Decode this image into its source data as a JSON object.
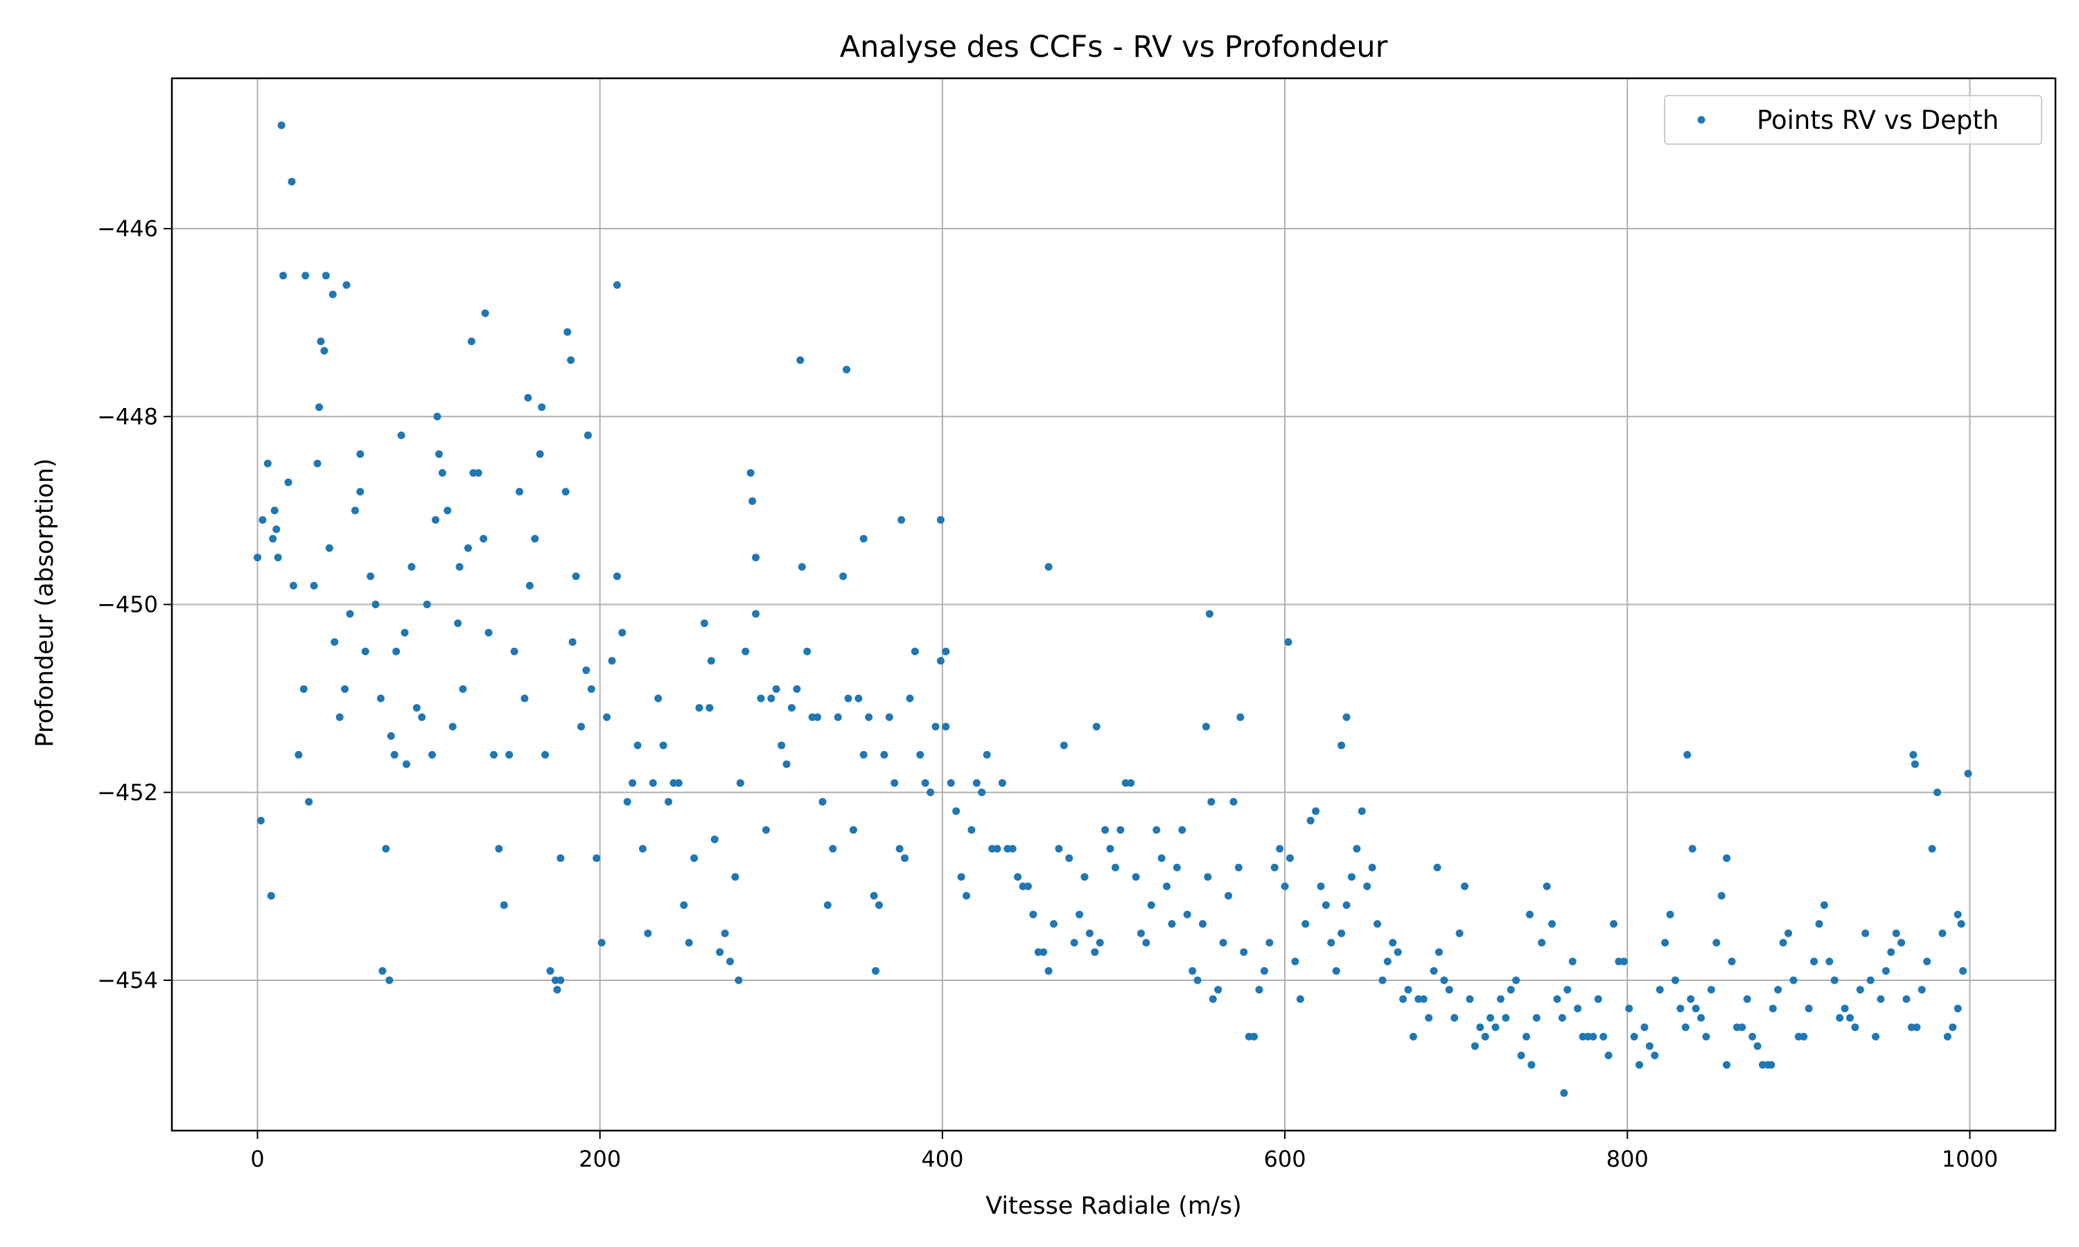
{
  "chart_data": {
    "type": "scatter",
    "title": "Analyse des CCFs - RV vs Profondeur",
    "xlabel": "Vitesse Radiale (m/s)",
    "ylabel": "Profondeur (absorption)",
    "xlim": [
      -50,
      1050
    ],
    "ylim": [
      -455.6,
      -444.4
    ],
    "x_ticks": [
      0,
      200,
      400,
      600,
      800,
      1000
    ],
    "x_tick_labels": [
      "0",
      "200",
      "400",
      "600",
      "800",
      "1000"
    ],
    "y_ticks": [
      -446,
      -448,
      -450,
      -452,
      -454
    ],
    "y_tick_labels": [
      "−446",
      "−448",
      "−450",
      "−452",
      "−454"
    ],
    "grid": true,
    "legend_position": "top-right",
    "colors": {
      "series": "#1f77b4",
      "grid": "#b0b0b0",
      "axes": "#000000"
    },
    "series": [
      {
        "name": "Points RV vs Depth",
        "marker": "dot",
        "x": [
          0,
          3,
          6,
          9,
          12,
          15,
          18,
          21,
          24,
          27,
          30,
          33,
          36,
          39,
          42,
          45,
          48,
          51,
          54,
          57,
          60,
          63,
          66,
          69,
          72,
          75,
          78,
          81,
          84,
          87,
          90,
          93,
          96,
          99,
          102,
          105,
          108,
          111,
          114,
          117,
          120,
          123,
          126,
          129,
          132,
          135,
          138,
          141,
          144,
          147,
          150,
          153,
          156,
          159,
          162,
          165,
          168,
          171,
          174,
          177,
          180,
          183,
          186,
          189,
          192,
          195,
          198,
          201,
          204,
          207,
          210,
          213,
          216,
          219,
          222,
          225,
          228,
          231,
          234,
          237,
          240,
          243,
          246,
          249,
          252,
          255,
          258,
          261,
          264,
          267,
          270,
          273,
          276,
          279,
          282,
          285,
          288,
          291,
          294,
          297,
          300,
          303,
          306,
          309,
          312,
          315,
          318,
          321,
          324,
          327,
          330,
          333,
          336,
          339,
          342,
          345,
          348,
          351,
          354,
          357,
          360,
          363,
          366,
          369,
          372,
          375,
          378,
          381,
          384,
          387,
          390,
          393,
          396,
          399,
          402,
          405,
          408,
          411,
          414,
          417,
          420,
          423,
          426,
          429,
          432,
          435,
          438,
          441,
          444,
          447,
          450,
          453,
          456,
          459,
          462,
          465,
          468,
          471,
          474,
          477,
          480,
          483,
          486,
          489,
          492,
          495,
          498,
          501,
          504,
          507,
          510,
          513,
          516,
          519,
          522,
          525,
          528,
          531,
          534,
          537,
          540,
          543,
          546,
          549,
          552,
          555,
          558,
          561,
          564,
          567,
          570,
          573,
          576,
          579,
          582,
          585,
          588,
          591,
          594,
          597,
          600,
          603,
          606,
          609,
          612,
          615,
          618,
          621,
          624,
          627,
          630,
          633,
          636,
          639,
          642,
          645,
          648,
          651,
          654,
          657,
          660,
          663,
          666,
          669,
          672,
          675,
          678,
          681,
          684,
          687,
          690,
          693,
          696,
          699,
          702,
          705,
          708,
          711,
          714,
          717,
          720,
          723,
          726,
          729,
          732,
          735,
          738,
          741,
          744,
          747,
          750,
          753,
          756,
          759,
          762,
          765,
          768,
          771,
          774,
          777,
          780,
          783,
          786,
          789,
          792,
          795,
          798,
          801,
          804,
          807,
          810,
          813,
          816,
          819,
          822,
          825,
          828,
          831,
          834,
          837,
          840,
          843,
          846,
          849,
          852,
          855,
          858,
          861,
          864,
          867,
          870,
          873,
          876,
          879,
          882,
          885,
          888,
          891,
          894,
          897,
          900,
          903,
          906,
          909,
          912,
          915,
          918,
          921,
          924,
          927,
          930,
          933,
          936,
          939,
          942,
          945,
          948,
          951,
          954,
          957,
          960,
          963,
          966,
          969,
          972,
          975,
          978,
          981,
          984,
          987,
          990,
          993,
          996,
          999,
          2,
          8,
          10,
          11,
          14,
          20,
          28,
          35,
          37,
          40,
          44,
          52,
          60,
          80,
          86,
          104,
          106,
          118,
          125,
          133,
          158,
          166,
          181,
          184,
          193,
          210,
          265,
          289,
          291,
          317,
          344,
          354,
          376,
          399,
          402,
          462,
          490,
          554,
          556,
          557,
          574,
          602,
          633,
          636,
          689,
          743,
          835,
          838,
          967,
          968,
          993,
          995,
          73,
          77,
          175,
          177,
          281,
          361,
          763,
          858,
          884
        ],
        "y": [
          -449.5,
          -449.1,
          -448.5,
          -449.3,
          -449.5,
          -446.5,
          -448.7,
          -449.8,
          -451.6,
          -450.9,
          -452.1,
          -449.8,
          -447.9,
          -447.3,
          -449.4,
          -450.4,
          -451.2,
          -450.9,
          -450.1,
          -449.0,
          -448.8,
          -450.5,
          -449.7,
          -450.0,
          -451.0,
          -452.6,
          -451.4,
          -450.5,
          -448.2,
          -451.7,
          -449.6,
          -451.1,
          -451.2,
          -450.0,
          -451.6,
          -448.0,
          -448.6,
          -449.0,
          -451.3,
          -450.2,
          -450.9,
          -449.4,
          -448.6,
          -448.6,
          -449.3,
          -450.3,
          -451.6,
          -452.6,
          -453.2,
          -451.6,
          -450.5,
          -448.8,
          -451.0,
          -449.8,
          -449.3,
          -448.4,
          -451.6,
          -453.9,
          -454.0,
          -452.7,
          -448.8,
          -447.4,
          -449.7,
          -451.3,
          -450.7,
          -450.9,
          -452.7,
          -453.6,
          -451.2,
          -450.6,
          -449.7,
          -450.3,
          -452.1,
          -451.9,
          -451.5,
          -452.6,
          -453.5,
          -451.9,
          -451.0,
          -451.5,
          -452.1,
          -451.9,
          -451.9,
          -453.2,
          -453.6,
          -452.7,
          -451.1,
          -450.2,
          -451.1,
          -452.5,
          -453.7,
          -453.5,
          -453.8,
          -452.9,
          -451.9,
          -450.5,
          -448.6,
          -449.5,
          -451.0,
          -452.4,
          -451.0,
          -450.9,
          -451.5,
          -451.7,
          -451.1,
          -450.9,
          -449.6,
          -450.5,
          -451.2,
          -451.2,
          -452.1,
          -453.2,
          -452.6,
          -451.2,
          -449.7,
          -451.0,
          -452.4,
          -451.0,
          -451.6,
          -451.2,
          -453.1,
          -453.2,
          -451.6,
          -451.2,
          -451.9,
          -452.6,
          -452.7,
          -451.0,
          -450.5,
          -451.6,
          -451.9,
          -452.0,
          -451.3,
          -450.6,
          -451.3,
          -451.9,
          -452.2,
          -452.9,
          -453.1,
          -452.4,
          -451.9,
          -452.0,
          -451.6,
          -452.6,
          -452.6,
          -451.9,
          -452.6,
          -452.6,
          -452.9,
          -453.0,
          -453.0,
          -453.3,
          -453.7,
          -453.7,
          -453.9,
          -453.4,
          -452.6,
          -451.5,
          -452.7,
          -453.6,
          -453.3,
          -452.9,
          -453.5,
          -453.7,
          -453.6,
          -452.4,
          -452.6,
          -452.8,
          -452.4,
          -451.9,
          -451.9,
          -452.9,
          -453.5,
          -453.6,
          -453.2,
          -452.4,
          -452.7,
          -453.0,
          -453.4,
          -452.8,
          -452.4,
          -453.3,
          -453.9,
          -454.0,
          -453.4,
          -452.9,
          -454.2,
          -454.1,
          -453.6,
          -453.1,
          -452.1,
          -452.8,
          -453.7,
          -454.6,
          -454.6,
          -454.1,
          -453.9,
          -453.6,
          -452.8,
          -452.6,
          -453.0,
          -452.7,
          -453.8,
          -454.2,
          -453.4,
          -452.3,
          -452.2,
          -453.0,
          -453.2,
          -453.6,
          -453.9,
          -453.5,
          -453.2,
          -452.9,
          -452.6,
          -452.2,
          -453.0,
          -452.8,
          -453.4,
          -454.0,
          -453.8,
          -453.6,
          -453.7,
          -454.2,
          -454.1,
          -454.6,
          -454.2,
          -454.2,
          -454.4,
          -453.9,
          -453.7,
          -454.0,
          -454.1,
          -454.4,
          -453.5,
          -453.0,
          -454.2,
          -454.7,
          -454.5,
          -454.6,
          -454.4,
          -454.5,
          -454.2,
          -454.4,
          -454.1,
          -454.0,
          -454.8,
          -454.6,
          -454.9,
          -454.4,
          -453.6,
          -453.0,
          -453.4,
          -454.2,
          -454.4,
          -454.1,
          -453.8,
          -454.3,
          -454.6,
          -454.6,
          -454.6,
          -454.2,
          -454.6,
          -454.8,
          -453.4,
          -453.8,
          -453.8,
          -454.3,
          -454.6,
          -454.9,
          -454.5,
          -454.7,
          -454.8,
          -454.1,
          -453.6,
          -453.3,
          -454.0,
          -454.3,
          -454.5,
          -454.2,
          -454.3,
          -454.4,
          -454.6,
          -454.1,
          -453.6,
          -453.1,
          -452.7,
          -453.8,
          -454.5,
          -454.5,
          -454.2,
          -454.6,
          -454.7,
          -454.9,
          -454.9,
          -454.3,
          -454.1,
          -453.6,
          -453.5,
          -454.0,
          -454.6,
          -454.6,
          -454.3,
          -453.8,
          -453.4,
          -453.2,
          -453.8,
          -454.0,
          -454.4,
          -454.3,
          -454.4,
          -454.5,
          -454.1,
          -453.5,
          -454.0,
          -454.6,
          -454.2,
          -453.9,
          -453.7,
          -453.5,
          -453.6,
          -454.2,
          -454.5,
          -454.5,
          -454.1,
          -453.8,
          -452.6,
          -452.0,
          -453.5,
          -454.6,
          -454.5,
          -454.3,
          -453.9,
          -451.8,
          -452.3,
          -453.1,
          -449.0,
          -449.2,
          -444.9,
          -445.5,
          -446.5,
          -448.5,
          -447.2,
          -446.5,
          -446.7,
          -446.6,
          -448.4,
          -451.6,
          -450.3,
          -449.1,
          -448.4,
          -449.6,
          -447.2,
          -446.9,
          -447.8,
          -447.9,
          -447.1,
          -450.4,
          -448.2,
          -446.6,
          -450.6,
          -448.9,
          -450.1,
          -447.4,
          -447.5,
          -449.3,
          -449.1,
          -449.1,
          -450.5,
          -449.6,
          -451.3,
          -451.3,
          -450.1,
          -452.1,
          -451.2,
          -450.4,
          -451.5,
          -451.2,
          -452.8,
          -453.3,
          -451.6,
          -452.6,
          -451.6,
          -451.7,
          -453.3,
          -453.4,
          -453.9,
          -454.0,
          -454.1,
          -454.0,
          -454.0,
          -453.9,
          -455.2,
          -454.9,
          -454.9
        ]
      }
    ]
  }
}
